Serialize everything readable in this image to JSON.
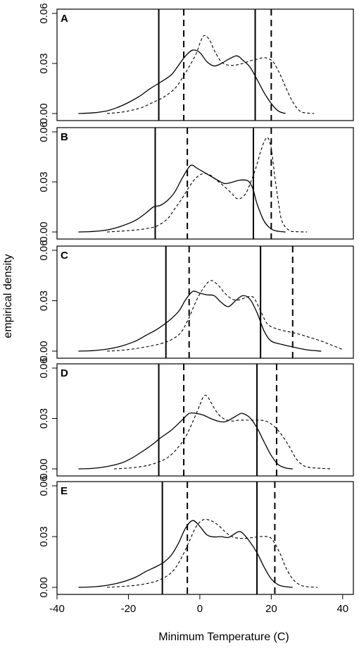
{
  "figure": {
    "ylabel": "empirical density",
    "xlabel": "Minimum Temperature (C)"
  },
  "chart_data": [
    {
      "type": "line",
      "panel": "A",
      "xlim": [
        -40,
        43
      ],
      "ylim": [
        0,
        0.06
      ],
      "x_ticks": [
        -40,
        -20,
        0,
        20,
        40
      ],
      "y_ticks": [
        "0.00",
        "0.03",
        "0.06"
      ],
      "series": [
        {
          "line": "solid",
          "x": [
            -34,
            -30,
            -26,
            -23,
            -20,
            -17,
            -14,
            -11,
            -8,
            -6,
            -4,
            -2,
            0,
            2,
            4,
            6,
            8,
            10,
            11,
            12,
            14,
            16,
            18,
            20,
            22,
            24
          ],
          "y": [
            0,
            0.0004,
            0.0016,
            0.0037,
            0.0066,
            0.0102,
            0.0148,
            0.0188,
            0.0232,
            0.0288,
            0.0345,
            0.038,
            0.0365,
            0.031,
            0.0285,
            0.03,
            0.0325,
            0.0345,
            0.034,
            0.032,
            0.028,
            0.0205,
            0.0125,
            0.006,
            0.0015,
            0
          ]
        },
        {
          "line": "dashed",
          "x": [
            -26,
            -22,
            -19,
            -16,
            -13,
            -10,
            -7,
            -5,
            -3,
            -1,
            0,
            1,
            2,
            3,
            4,
            6,
            8,
            10,
            12,
            14,
            16,
            18,
            20,
            21,
            22,
            23,
            24,
            26,
            28,
            30,
            32
          ],
          "y": [
            0,
            0.0008,
            0.002,
            0.0038,
            0.0068,
            0.01,
            0.015,
            0.021,
            0.028,
            0.036,
            0.042,
            0.0465,
            0.046,
            0.043,
            0.038,
            0.031,
            0.029,
            0.029,
            0.03,
            0.0315,
            0.0325,
            0.0335,
            0.032,
            0.0295,
            0.0255,
            0.021,
            0.016,
            0.007,
            0.0015,
            0.0003,
            0
          ]
        }
      ],
      "vlines": [
        {
          "x": -11.5,
          "line": "solid"
        },
        {
          "x": -4.5,
          "line": "dashed"
        },
        {
          "x": 15.5,
          "line": "solid"
        },
        {
          "x": 20,
          "line": "dashed"
        }
      ]
    },
    {
      "type": "line",
      "panel": "B",
      "xlim": [
        -40,
        43
      ],
      "ylim": [
        0,
        0.06
      ],
      "x_ticks": [
        -40,
        -20,
        0,
        20,
        40
      ],
      "y_ticks": [
        "0.00",
        "0.03",
        "0.06"
      ],
      "series": [
        {
          "line": "solid",
          "x": [
            -34,
            -30,
            -26,
            -22,
            -18,
            -15,
            -13,
            -11,
            -9,
            -7,
            -5,
            -3,
            -2,
            -1,
            1,
            3,
            5,
            7,
            9,
            11,
            13,
            14,
            15,
            16,
            18,
            20,
            22,
            24
          ],
          "y": [
            0,
            0.0003,
            0.0012,
            0.0035,
            0.007,
            0.0115,
            0.015,
            0.016,
            0.019,
            0.024,
            0.032,
            0.039,
            0.04,
            0.0385,
            0.036,
            0.0335,
            0.031,
            0.029,
            0.0298,
            0.031,
            0.031,
            0.0295,
            0.025,
            0.017,
            0.0065,
            0.0018,
            0.0004,
            0
          ]
        },
        {
          "line": "dashed",
          "x": [
            -26,
            -22,
            -18,
            -15,
            -12,
            -9,
            -7,
            -5,
            -3,
            -1,
            1,
            3,
            5,
            7,
            9,
            10,
            11,
            12,
            13,
            14,
            15,
            16,
            17,
            18,
            19,
            20,
            21,
            22,
            23,
            25,
            27,
            30
          ],
          "y": [
            0,
            0.0005,
            0.0012,
            0.002,
            0.0036,
            0.008,
            0.014,
            0.02,
            0.027,
            0.0325,
            0.035,
            0.034,
            0.0305,
            0.027,
            0.023,
            0.0205,
            0.0198,
            0.021,
            0.0235,
            0.0285,
            0.034,
            0.0405,
            0.048,
            0.054,
            0.0565,
            0.05,
            0.033,
            0.018,
            0.0065,
            0.001,
            0.0002,
            0
          ]
        }
      ],
      "vlines": [
        {
          "x": -12.5,
          "line": "solid"
        },
        {
          "x": -3.5,
          "line": "dashed"
        },
        {
          "x": 15,
          "line": "solid"
        },
        {
          "x": 20,
          "line": "dashed"
        }
      ]
    },
    {
      "type": "line",
      "panel": "C",
      "xlim": [
        -40,
        43
      ],
      "ylim": [
        0,
        0.06
      ],
      "x_ticks": [
        -40,
        -20,
        0,
        20,
        40
      ],
      "y_ticks": [
        "0.00",
        "0.03",
        "0.06"
      ],
      "series": [
        {
          "line": "solid",
          "x": [
            -34,
            -30,
            -26,
            -22,
            -18,
            -15,
            -12,
            -9,
            -6,
            -4,
            -2,
            0,
            2,
            4,
            6,
            8,
            10,
            12,
            14,
            16,
            18,
            20,
            23,
            26,
            30,
            34
          ],
          "y": [
            0,
            0.0003,
            0.0012,
            0.003,
            0.006,
            0.0095,
            0.013,
            0.0175,
            0.0235,
            0.0305,
            0.0355,
            0.0345,
            0.0335,
            0.033,
            0.029,
            0.0265,
            0.03,
            0.033,
            0.031,
            0.023,
            0.012,
            0.006,
            0.004,
            0.0025,
            0.0008,
            0
          ]
        },
        {
          "line": "dashed",
          "x": [
            -26,
            -22,
            -18,
            -14,
            -10,
            -7,
            -5,
            -3,
            -1,
            1,
            3,
            5,
            7,
            9,
            11,
            13,
            15,
            17,
            19,
            22,
            25,
            28,
            31,
            34,
            37,
            40
          ],
          "y": [
            0,
            0.0005,
            0.0015,
            0.003,
            0.005,
            0.008,
            0.012,
            0.02,
            0.03,
            0.0375,
            0.042,
            0.0395,
            0.0345,
            0.031,
            0.0305,
            0.032,
            0.032,
            0.024,
            0.016,
            0.013,
            0.0115,
            0.01,
            0.008,
            0.006,
            0.0035,
            0.001
          ]
        }
      ],
      "vlines": [
        {
          "x": -9.5,
          "line": "solid"
        },
        {
          "x": -3,
          "line": "dashed"
        },
        {
          "x": 17,
          "line": "solid"
        },
        {
          "x": 26,
          "line": "dashed"
        }
      ]
    },
    {
      "type": "line",
      "panel": "D",
      "xlim": [
        -40,
        43
      ],
      "ylim": [
        0,
        0.06
      ],
      "x_ticks": [
        -40,
        -20,
        0,
        20,
        40
      ],
      "y_ticks": [
        "0.00",
        "0.03",
        "0.06"
      ],
      "series": [
        {
          "line": "solid",
          "x": [
            -34,
            -30,
            -26,
            -22,
            -19,
            -16,
            -13,
            -11,
            -8,
            -5,
            -3,
            -1,
            1,
            3,
            5,
            7,
            9,
            11,
            12,
            14,
            16,
            18,
            20,
            22,
            24,
            26
          ],
          "y": [
            0,
            0.0003,
            0.0014,
            0.0035,
            0.0065,
            0.0105,
            0.015,
            0.0185,
            0.023,
            0.029,
            0.033,
            0.033,
            0.032,
            0.03,
            0.0285,
            0.028,
            0.03,
            0.0325,
            0.033,
            0.0305,
            0.0245,
            0.016,
            0.008,
            0.0025,
            0.0006,
            0
          ]
        },
        {
          "line": "dashed",
          "x": [
            -24,
            -20,
            -16,
            -13,
            -10,
            -8,
            -6,
            -4,
            -2,
            0,
            1,
            2,
            3,
            5,
            7,
            9,
            11,
            13,
            15,
            17,
            19,
            21,
            23,
            25,
            27,
            29,
            31,
            34,
            37
          ],
          "y": [
            0,
            0.0005,
            0.0015,
            0.003,
            0.0055,
            0.0085,
            0.013,
            0.019,
            0.028,
            0.038,
            0.043,
            0.0435,
            0.04,
            0.033,
            0.0295,
            0.0285,
            0.029,
            0.029,
            0.029,
            0.029,
            0.028,
            0.025,
            0.02,
            0.0135,
            0.006,
            0.002,
            0.0008,
            0.0003,
            0
          ]
        }
      ],
      "vlines": [
        {
          "x": -11.5,
          "line": "solid"
        },
        {
          "x": -4.5,
          "line": "dashed"
        },
        {
          "x": 16,
          "line": "solid"
        },
        {
          "x": 21.5,
          "line": "dashed"
        }
      ]
    },
    {
      "type": "line",
      "panel": "E",
      "xlim": [
        -40,
        43
      ],
      "ylim": [
        0,
        0.06
      ],
      "x_ticks": [
        -40,
        -20,
        0,
        20,
        40
      ],
      "y_ticks": [
        "0.00",
        "0.03",
        "0.06"
      ],
      "series": [
        {
          "line": "solid",
          "x": [
            -34,
            -30,
            -26,
            -22,
            -18,
            -15,
            -12,
            -10,
            -8,
            -6,
            -4,
            -2,
            0,
            2,
            4,
            6,
            8,
            10,
            11,
            12,
            14,
            16,
            18,
            20,
            22,
            24,
            26
          ],
          "y": [
            0,
            0.0003,
            0.0012,
            0.003,
            0.006,
            0.0095,
            0.0125,
            0.015,
            0.019,
            0.026,
            0.035,
            0.0395,
            0.036,
            0.031,
            0.0298,
            0.03,
            0.0295,
            0.032,
            0.033,
            0.032,
            0.027,
            0.0205,
            0.012,
            0.005,
            0.0015,
            0.0004,
            0
          ]
        },
        {
          "line": "dashed",
          "x": [
            -26,
            -22,
            -18,
            -15,
            -12,
            -9,
            -7,
            -5,
            -3,
            -1,
            1,
            3,
            5,
            7,
            9,
            11,
            13,
            15,
            17,
            19,
            20,
            21,
            22,
            23,
            24,
            26,
            28,
            30,
            33
          ],
          "y": [
            0,
            0.0005,
            0.0012,
            0.0022,
            0.0038,
            0.007,
            0.011,
            0.018,
            0.027,
            0.036,
            0.04,
            0.0395,
            0.037,
            0.033,
            0.03,
            0.029,
            0.029,
            0.0295,
            0.03,
            0.03,
            0.029,
            0.026,
            0.022,
            0.0175,
            0.012,
            0.005,
            0.0015,
            0.0004,
            0
          ]
        }
      ],
      "vlines": [
        {
          "x": -10.5,
          "line": "solid"
        },
        {
          "x": -3.5,
          "line": "dashed"
        },
        {
          "x": 16,
          "line": "solid"
        },
        {
          "x": 21,
          "line": "dashed"
        }
      ]
    }
  ]
}
